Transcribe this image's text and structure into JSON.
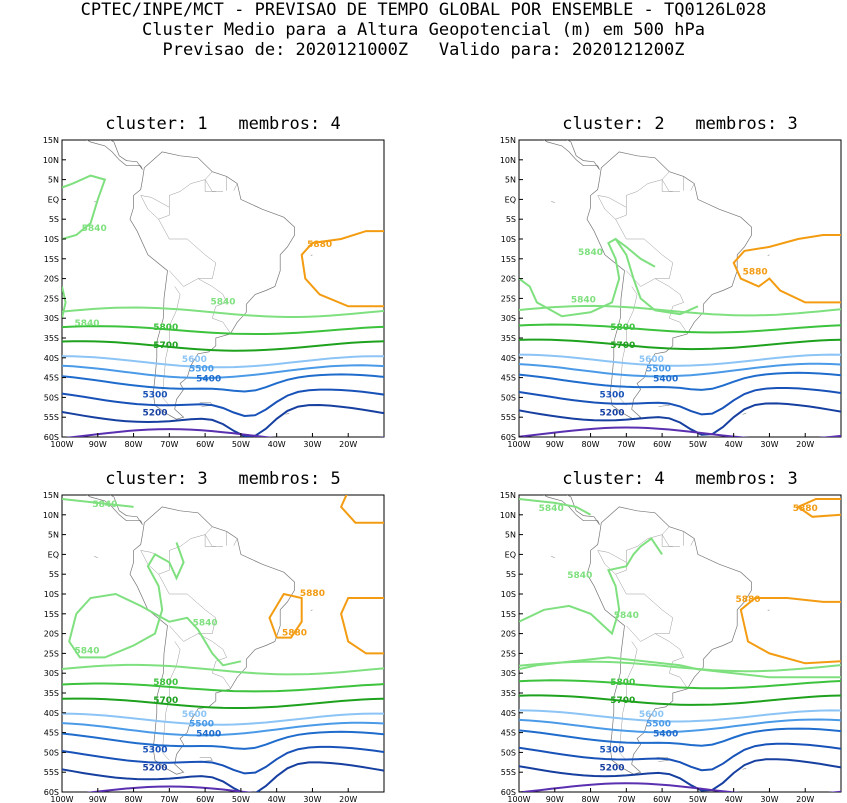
{
  "header": {
    "line1": "CPTEC/INPE/MCT - PREVISAO DE TEMPO GLOBAL POR ENSEMBLE - TQ0126L028",
    "line2": "Cluster Medio para a Altura Geopotencial (m) em 500 hPa",
    "line3": "Previsao de: 2020121000Z   Valido para: 2020121200Z"
  },
  "axes": {
    "lat_labels": [
      "15N",
      "10N",
      "5N",
      "EQ",
      "5S",
      "10S",
      "15S",
      "20S",
      "25S",
      "30S",
      "35S",
      "40S",
      "45S",
      "50S",
      "55S",
      "60S"
    ],
    "lon_labels": [
      "100W",
      "90W",
      "80W",
      "70W",
      "60W",
      "50W",
      "40W",
      "30W",
      "20W"
    ]
  },
  "colors": {
    "c5840": "#7fe07f",
    "c5800": "#3cc23c",
    "c5700": "#1ea21e",
    "c5600": "#8cc4f5",
    "c5500": "#4a9ae8",
    "c5400": "#1f6ccd",
    "c5300": "#1852b8",
    "c5200": "#163fa0",
    "c5100": "#5a2fb0",
    "c5880": "#f39c12"
  },
  "panels": [
    {
      "title": "cluster: 1   membros: 4",
      "labels": {
        "l5840a": "5840",
        "l5840b": "5840",
        "l5840c": "5840",
        "l5880a": "5880",
        "l5800": "5800",
        "l5700": "5700",
        "l5600": "5600",
        "l5500": "5500",
        "l5400": "5400",
        "l5300": "5300",
        "l5200": "5200"
      }
    },
    {
      "title": "cluster: 2   membros: 3",
      "labels": {
        "l5840a": "5840",
        "l5840b": "5840",
        "l5880a": "5880",
        "l5800": "5800",
        "l5700": "5700",
        "l5600": "5600",
        "l5500": "5500",
        "l5400": "5400",
        "l5300": "5300",
        "l5200": "5200"
      }
    },
    {
      "title": "cluster: 3   membros: 5",
      "labels": {
        "l5840a": "5840",
        "l5840b": "5840",
        "l5840c": "5840",
        "l5880a": "5880",
        "l5880b": "5880",
        "l5800": "5800",
        "l5700": "5700",
        "l5600": "5600",
        "l5500": "5500",
        "l5400": "5400",
        "l5300": "5300",
        "l5200": "5200"
      }
    },
    {
      "title": "cluster: 4   membros: 3",
      "labels": {
        "l5840a": "5840",
        "l5840b": "5840",
        "l5840c": "5840",
        "l5880a": "5880",
        "l5880b": "5880",
        "l5800": "5800",
        "l5700": "5700",
        "l5600": "5600",
        "l5500": "5500",
        "l5400": "5400",
        "l5300": "5300",
        "l5200": "5200"
      }
    }
  ]
}
